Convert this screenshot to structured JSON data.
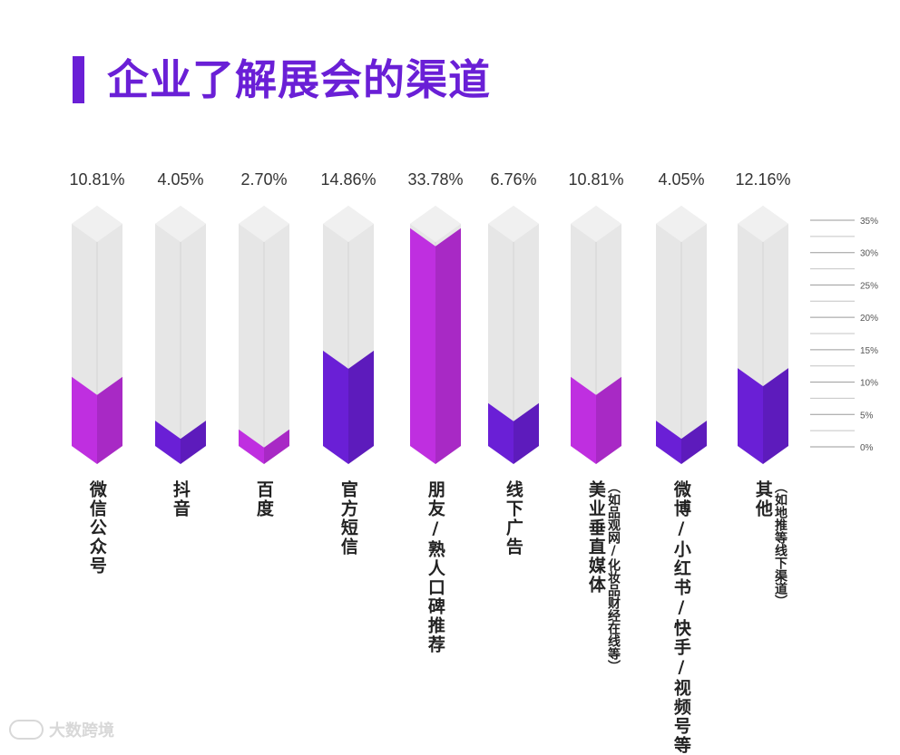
{
  "title": "企业了解展会的渠道",
  "watermark": "大数跨境",
  "colors": {
    "accent": "#6a1fd6",
    "magenta": "#bf2fe0",
    "violet": "#6a1fd6",
    "track": "#e6e6e6",
    "track_top": "#f0f0f0"
  },
  "chart_data": {
    "type": "bar",
    "title": "企业了解展会的渠道",
    "categories": [
      "微信公众号",
      "抖音",
      "百度",
      "官方短信",
      "朋友/熟人口碑推荐",
      "线下广告",
      "美业垂直媒体",
      "微博/小红书/快手/视频号等",
      "其他"
    ],
    "category_notes": [
      "",
      "",
      "",
      "",
      "",
      "",
      "（如品观网/化妆品财经在线等）",
      "",
      "（如地推等线下渠道）"
    ],
    "values": [
      10.81,
      4.05,
      2.7,
      14.86,
      33.78,
      6.76,
      10.81,
      4.05,
      12.16
    ],
    "value_labels": [
      "10.81%",
      "4.05%",
      "2.70%",
      "14.86%",
      "33.78%",
      "6.76%",
      "10.81%",
      "4.05%",
      "12.16%"
    ],
    "bar_colors": [
      "#bf2fe0",
      "#6a1fd6",
      "#bf2fe0",
      "#6a1fd6",
      "#bf2fe0",
      "#6a1fd6",
      "#bf2fe0",
      "#6a1fd6",
      "#6a1fd6"
    ],
    "ylim": [
      0,
      35
    ],
    "yticks": [
      0,
      5,
      10,
      15,
      20,
      25,
      30,
      35
    ],
    "ytick_labels": [
      "0%",
      "5%",
      "10%",
      "15%",
      "20%",
      "25%",
      "30%",
      "35%"
    ],
    "grid": false,
    "legend": "none"
  }
}
